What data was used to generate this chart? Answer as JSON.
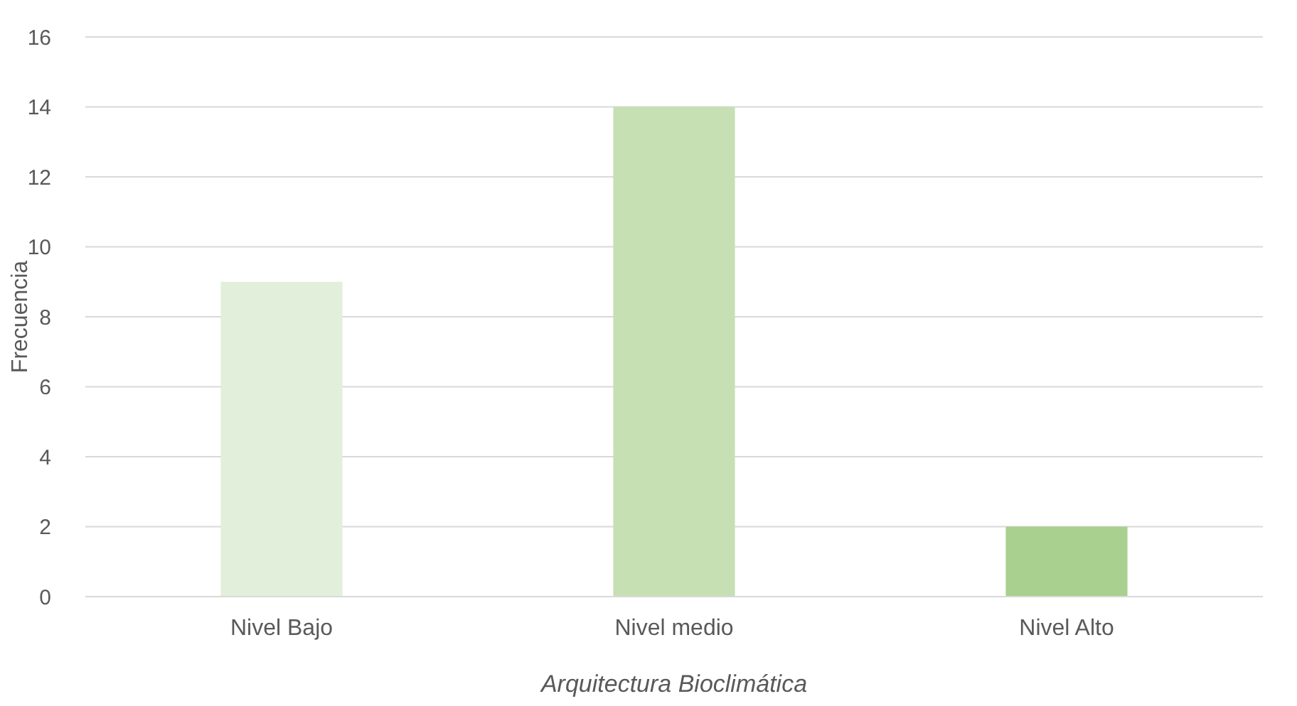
{
  "chart_data": {
    "type": "bar",
    "xlabel": "Arquitectura Bioclimática",
    "ylabel": "Frecuencia",
    "categories": [
      "Nivel Bajo",
      "Nivel medio",
      "Nivel Alto"
    ],
    "values": [
      9,
      14,
      2
    ],
    "colors": [
      "#e2efda",
      "#c6e0b4",
      "#a9d08e"
    ],
    "ylim": [
      0,
      16
    ],
    "yticks": [
      0,
      2,
      4,
      6,
      8,
      10,
      12,
      14,
      16
    ],
    "grid": "y"
  }
}
